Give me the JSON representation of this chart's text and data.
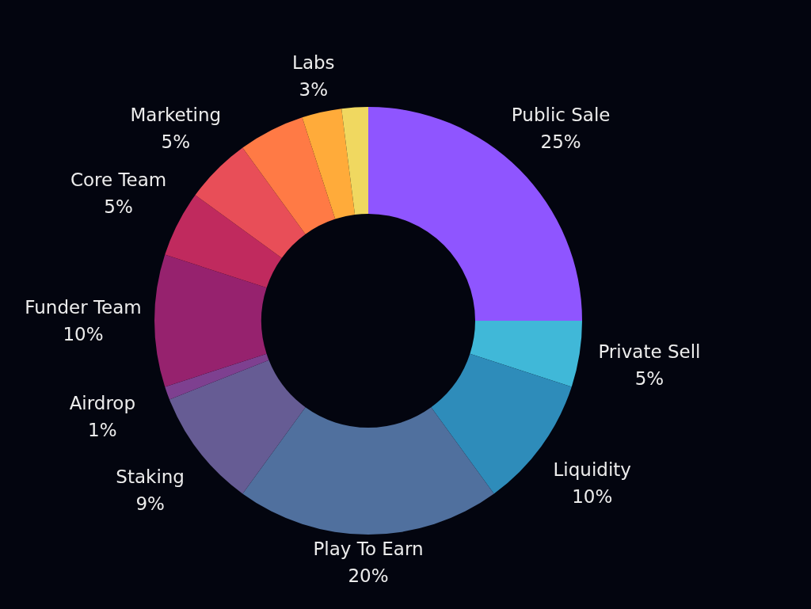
{
  "chart_data": {
    "type": "donut",
    "categories": [
      "Public Sale",
      "Private Sell",
      "Liquidity",
      "Play To Earn",
      "Staking",
      "Airdrop",
      "Funder Team",
      "Core Team",
      "Marketing",
      null,
      "Labs",
      null
    ],
    "values": [
      25,
      5,
      10,
      20,
      9,
      1,
      10,
      5,
      5,
      5,
      3,
      2
    ],
    "colors": [
      "#8f55ff",
      "#40b8d8",
      "#2e8cba",
      "#50709e",
      "#665c94",
      "#7e4090",
      "#96226e",
      "#c02a5e",
      "#e84e58",
      "#ff7a45",
      "#ffab3a",
      "#f0d860"
    ],
    "value_labels": [
      "25%",
      "5%",
      "10%",
      "20%",
      "9%",
      "1%",
      "10%",
      "5%",
      "5%",
      null,
      "3%",
      null
    ]
  }
}
